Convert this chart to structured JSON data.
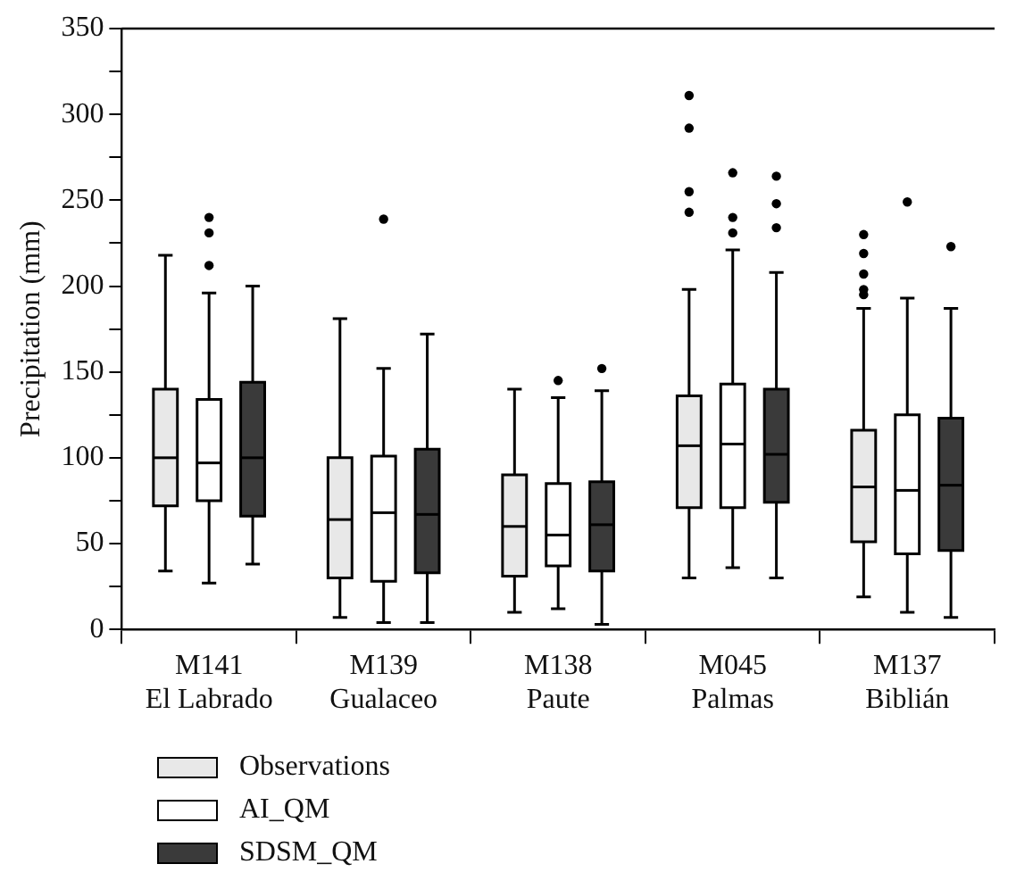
{
  "chart_data": {
    "type": "box",
    "ylabel": "Precipitation (mm)",
    "categories": [
      "M141\nEl Labrado",
      "M139\nGualaceo",
      "M138\nPaute",
      "M045\nPalmas",
      "M137\nBiblián"
    ],
    "ylim": [
      0,
      350
    ],
    "yticks": [
      0,
      {
        "value": 25,
        "label": null
      },
      50,
      {
        "value": 75,
        "label": null
      },
      100,
      {
        "value": 125,
        "label": null
      },
      150,
      {
        "value": 175,
        "label": null
      },
      200,
      {
        "value": 225,
        "label": null
      },
      250,
      {
        "value": 275,
        "label": null
      },
      300,
      {
        "value": 325,
        "label": null
      },
      350
    ],
    "grid": false,
    "legend": "bottom",
    "series": [
      {
        "name": "Observations",
        "color": "#e8e8e8",
        "boxes": [
          {
            "low": 34,
            "q1": 72,
            "median": 100,
            "q3": 140,
            "high": 218
          },
          {
            "low": 7,
            "q1": 30,
            "median": 64,
            "q3": 100,
            "high": 181
          },
          {
            "low": 10,
            "q1": 31,
            "median": 60,
            "q3": 90,
            "high": 140
          },
          {
            "low": 30,
            "q1": 71,
            "median": 107,
            "q3": 136,
            "high": 198,
            "outliers": [
              311,
              292,
              255,
              243
            ]
          },
          {
            "low": 19,
            "q1": 51,
            "median": 83,
            "q3": 116,
            "high": 187,
            "outliers": [
              230,
              219,
              207,
              198,
              195
            ]
          }
        ]
      },
      {
        "name": "AI_QM",
        "color": "#ffffff",
        "boxes": [
          {
            "low": 27,
            "q1": 75,
            "median": 97,
            "q3": 134,
            "high": 196,
            "outliers": [
              240,
              231,
              212
            ]
          },
          {
            "low": 4,
            "q1": 28,
            "median": 68,
            "q3": 101,
            "high": 152,
            "outliers": [
              239
            ]
          },
          {
            "low": 12,
            "q1": 37,
            "median": 55,
            "q3": 85,
            "high": 135,
            "outliers": [
              145
            ]
          },
          {
            "low": 36,
            "q1": 71,
            "median": 108,
            "q3": 143,
            "high": 221,
            "outliers": [
              266,
              240,
              231
            ]
          },
          {
            "low": 10,
            "q1": 44,
            "median": 81,
            "q3": 125,
            "high": 193,
            "outliers": [
              249
            ]
          }
        ]
      },
      {
        "name": "SDSM_QM",
        "color": "#3a3a3a",
        "boxes": [
          {
            "low": 38,
            "q1": 66,
            "median": 100,
            "q3": 144,
            "high": 200
          },
          {
            "low": 4,
            "q1": 33,
            "median": 67,
            "q3": 105,
            "high": 172
          },
          {
            "low": 3,
            "q1": 34,
            "median": 61,
            "q3": 86,
            "high": 139,
            "outliers": [
              152
            ]
          },
          {
            "low": 30,
            "q1": 74,
            "median": 102,
            "q3": 140,
            "high": 208,
            "outliers": [
              264,
              248,
              234
            ]
          },
          {
            "low": 7,
            "q1": 46,
            "median": 84,
            "q3": 123,
            "high": 187,
            "outliers": [
              223
            ]
          }
        ]
      }
    ]
  }
}
